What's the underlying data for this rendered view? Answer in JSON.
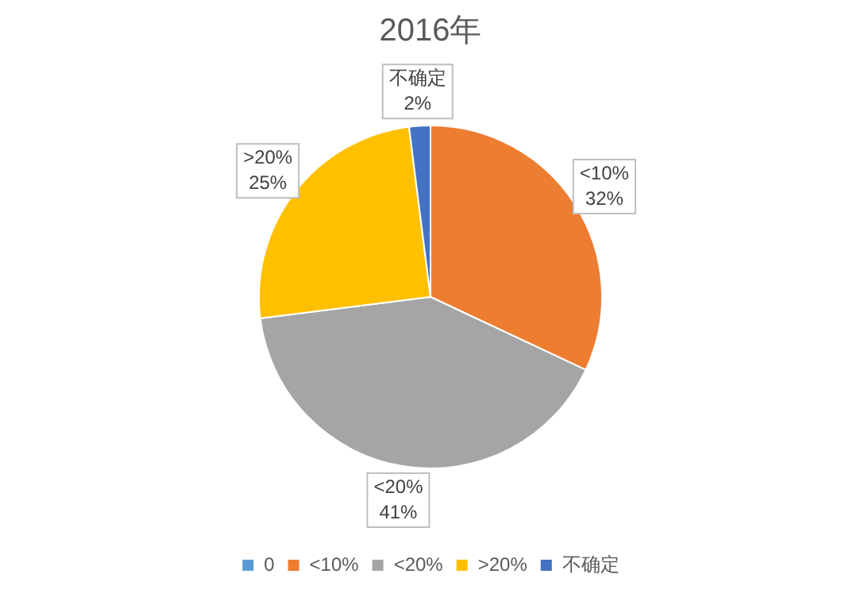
{
  "chart_data": {
    "type": "pie",
    "title": "2016年",
    "categories": [
      "0",
      "<10%",
      "<20%",
      ">20%",
      "不确定"
    ],
    "values": [
      0,
      32,
      41,
      25,
      2
    ],
    "colors": [
      "#5b9bd5",
      "#ed7d31",
      "#a5a5a5",
      "#ffc000",
      "#4472c4"
    ],
    "value_labels": [
      null,
      "32%",
      "41%",
      "25%",
      "2%"
    ],
    "legend": "bottom"
  }
}
